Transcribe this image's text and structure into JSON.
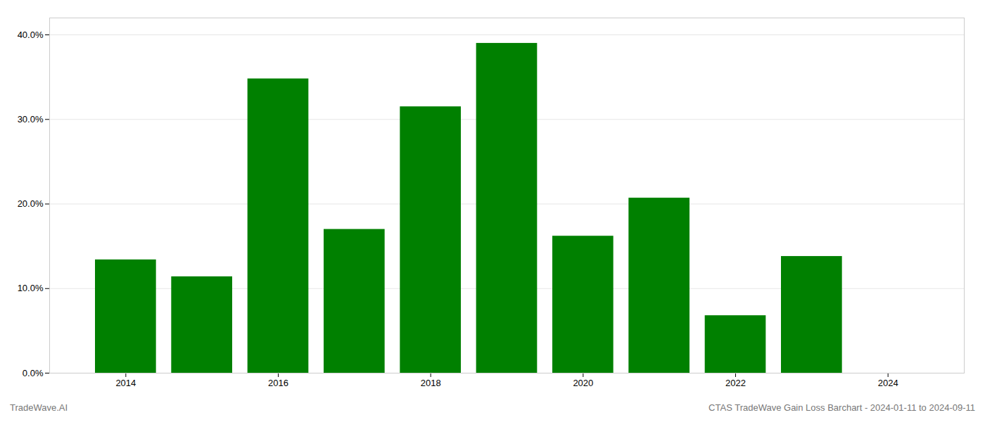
{
  "chart_data": {
    "type": "bar",
    "x": [
      2014,
      2015,
      2016,
      2017,
      2018,
      2019,
      2020,
      2021,
      2022,
      2023
    ],
    "values": [
      0.134,
      0.114,
      0.348,
      0.17,
      0.315,
      0.39,
      0.162,
      0.207,
      0.068,
      0.138
    ],
    "color": "#008000",
    "xlim": [
      2013.0,
      2025.0
    ],
    "xticks": [
      2014,
      2016,
      2018,
      2020,
      2022,
      2024
    ],
    "ylim": [
      0,
      0.42
    ],
    "yticks": [
      {
        "value": 0.0,
        "label": "0.0%"
      },
      {
        "value": 0.1,
        "label": "10.0%"
      },
      {
        "value": 0.2,
        "label": "20.0%"
      },
      {
        "value": 0.3,
        "label": "30.0%"
      },
      {
        "value": 0.4,
        "label": "40.0%"
      }
    ],
    "grid": true,
    "annotations": [
      "TradeWave.AI",
      "CTAS TradeWave Gain Loss Barchart - 2024-01-11 to 2024-09-11"
    ]
  }
}
